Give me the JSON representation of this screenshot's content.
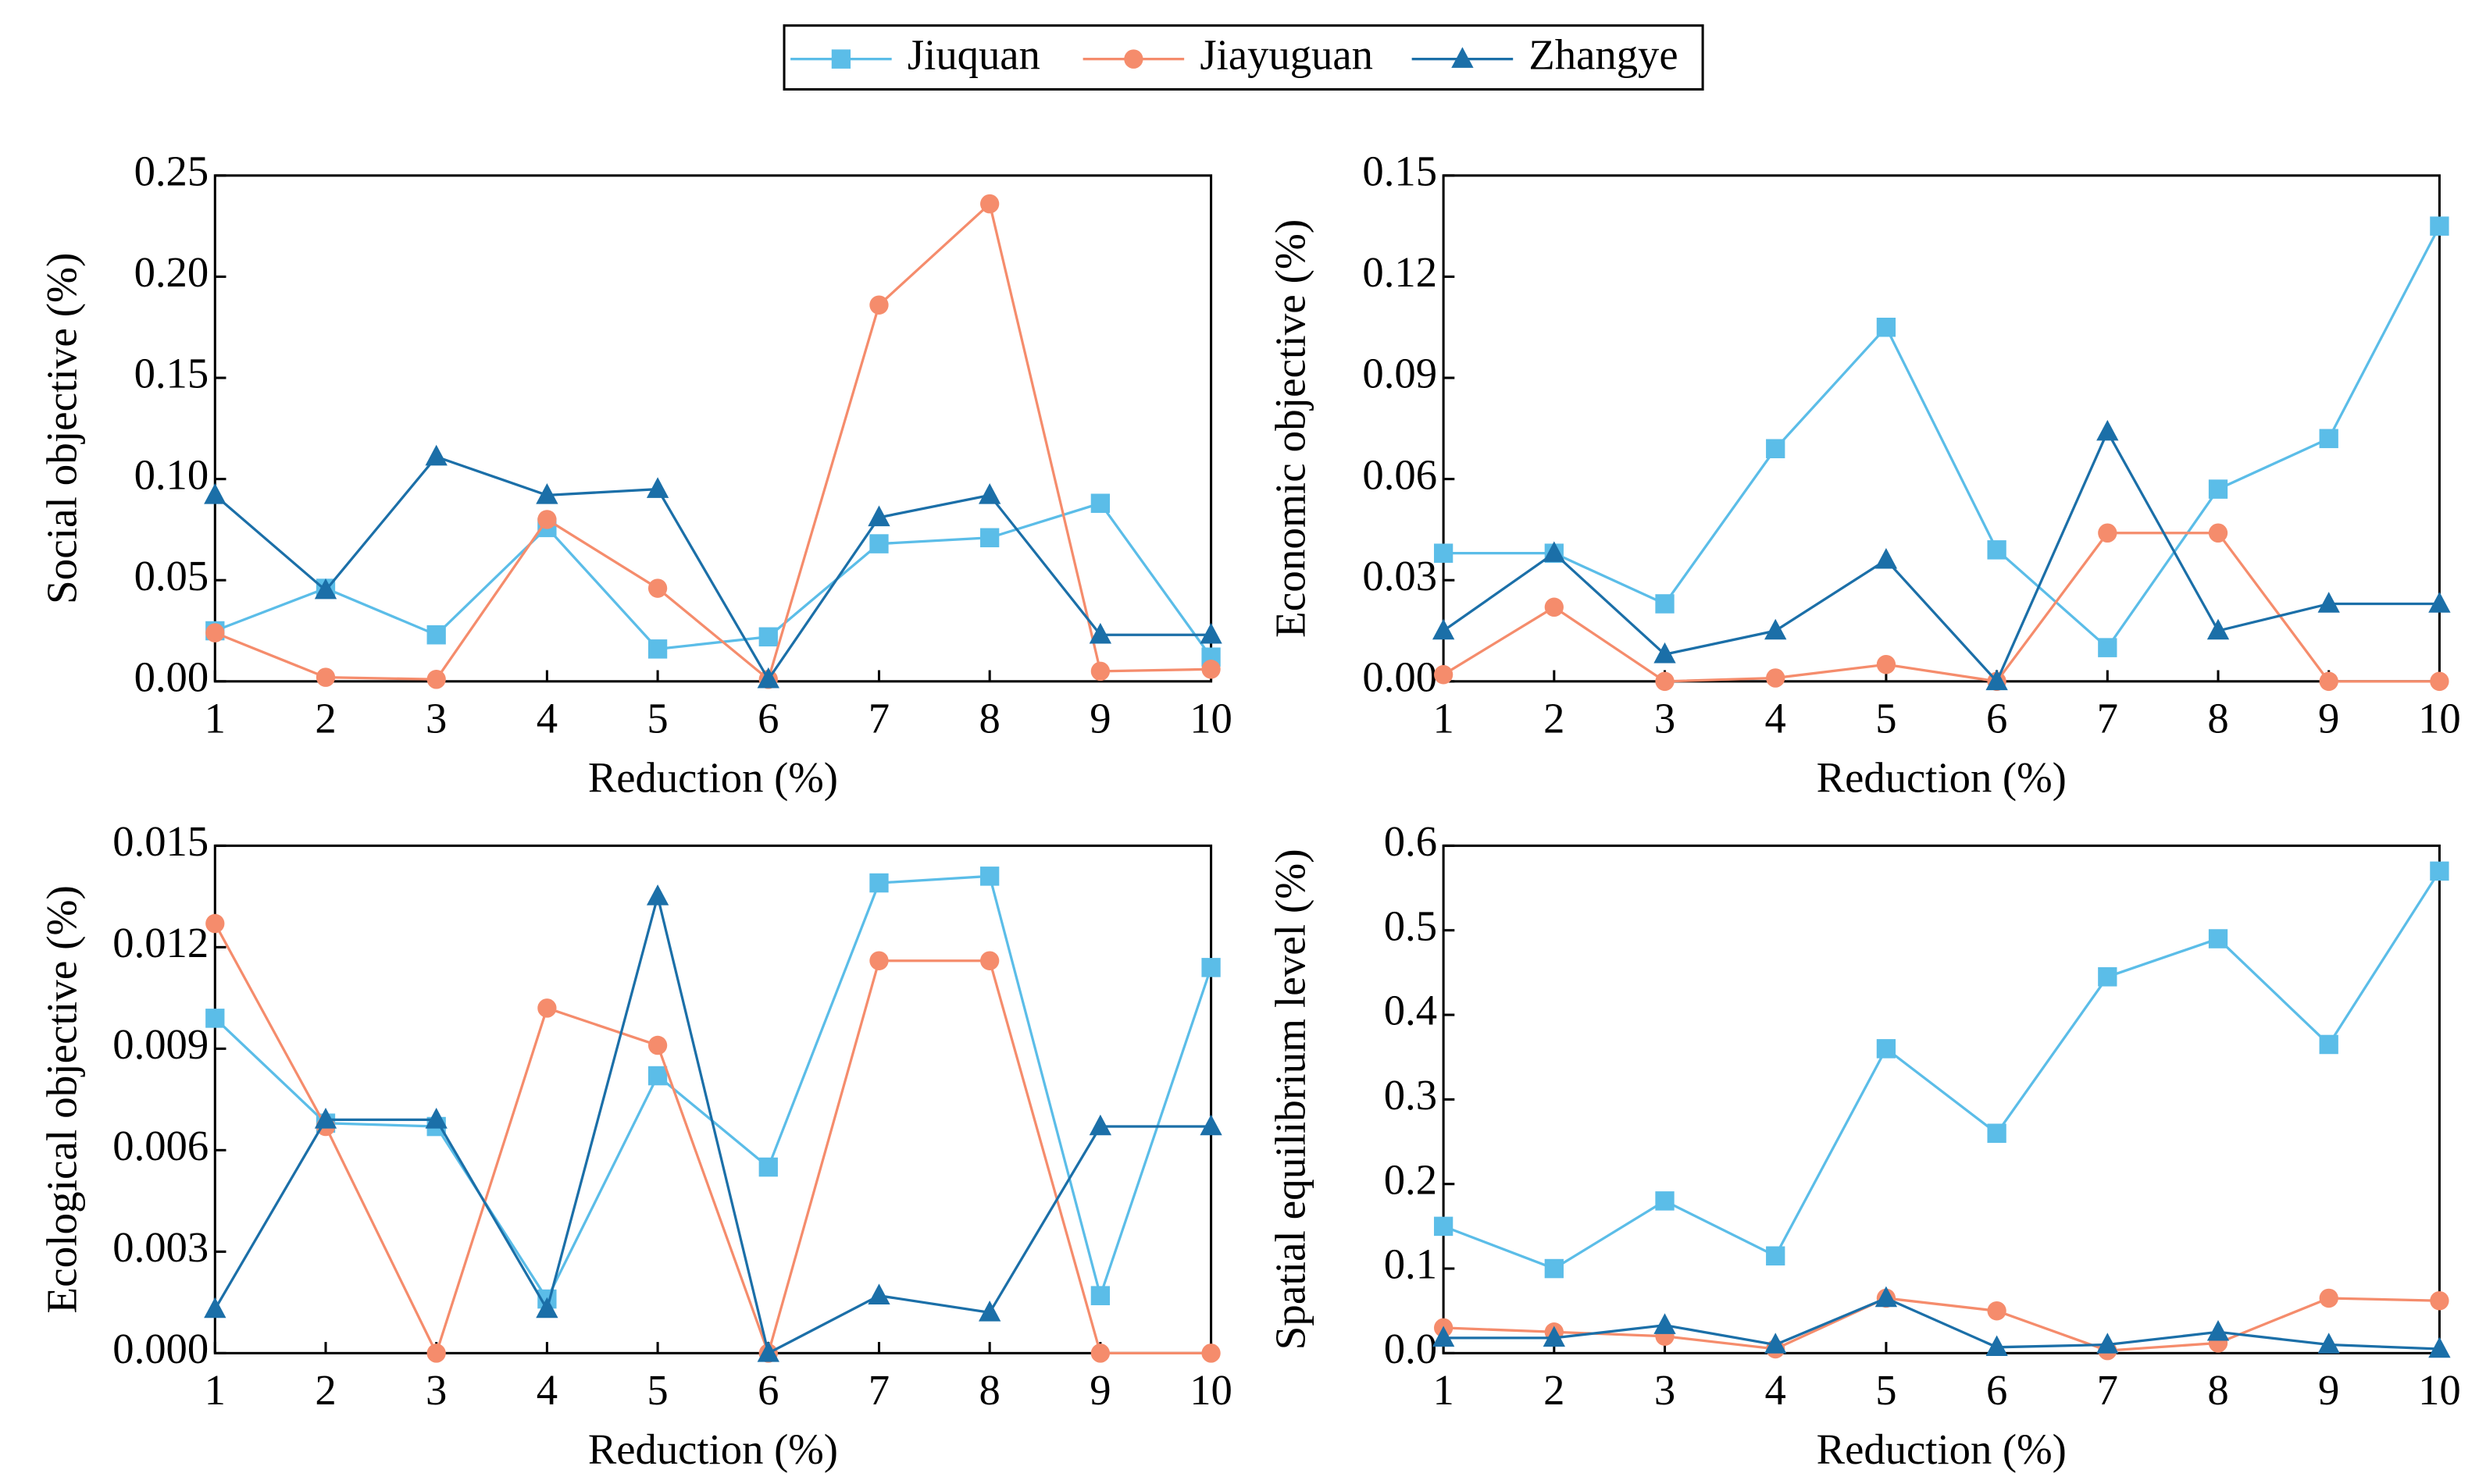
{
  "chart_data": [
    {
      "type": "line",
      "ylabel": "Social objective (%)",
      "xlabel": "Reduction (%)",
      "x": [
        1,
        2,
        3,
        4,
        5,
        6,
        7,
        8,
        9,
        10
      ],
      "xlim": [
        1,
        10
      ],
      "xticks": [
        1,
        2,
        3,
        4,
        5,
        6,
        7,
        8,
        9,
        10
      ],
      "ylim": [
        0,
        0.25
      ],
      "yticks": [
        {
          "value": 0,
          "label": "0.00"
        },
        {
          "value": 0.05,
          "label": "0.05"
        },
        {
          "value": 0.1,
          "label": "0.10"
        },
        {
          "value": 0.15,
          "label": "0.15"
        },
        {
          "value": 0.2,
          "label": "0.20"
        },
        {
          "value": 0.25,
          "label": "0.25"
        }
      ],
      "series": [
        {
          "name": "Jiuquan",
          "color": "#5bbde8",
          "marker": "square",
          "values": [
            0.025,
            0.046,
            0.023,
            0.076,
            0.016,
            0.022,
            0.068,
            0.071,
            0.088,
            0.012
          ]
        },
        {
          "name": "Jiayuguan",
          "color": "#f58c6c",
          "marker": "circle",
          "values": [
            0.024,
            0.002,
            0.001,
            0.08,
            0.046,
            0.001,
            0.186,
            0.236,
            0.005,
            0.006
          ]
        },
        {
          "name": "Zhangye",
          "color": "#1b6fa8",
          "marker": "triangle",
          "values": [
            0.092,
            0.045,
            0.111,
            0.092,
            0.095,
            0.001,
            0.081,
            0.092,
            0.023,
            0.023
          ]
        }
      ]
    },
    {
      "type": "line",
      "ylabel": "Economic objective (%)",
      "xlabel": "Reduction (%)",
      "x": [
        1,
        2,
        3,
        4,
        5,
        6,
        7,
        8,
        9,
        10
      ],
      "xlim": [
        1,
        10
      ],
      "xticks": [
        1,
        2,
        3,
        4,
        5,
        6,
        7,
        8,
        9,
        10
      ],
      "ylim": [
        0,
        0.15
      ],
      "yticks": [
        {
          "value": 0,
          "label": "0.00"
        },
        {
          "value": 0.03,
          "label": "0.03"
        },
        {
          "value": 0.06,
          "label": "0.06"
        },
        {
          "value": 0.09,
          "label": "0.09"
        },
        {
          "value": 0.12,
          "label": "0.12"
        },
        {
          "value": 0.15,
          "label": "0.15"
        }
      ],
      "series": [
        {
          "name": "Jiuquan",
          "color": "#5bbde8",
          "marker": "square",
          "values": [
            0.038,
            0.038,
            0.023,
            0.069,
            0.105,
            0.039,
            0.01,
            0.057,
            0.072,
            0.135
          ]
        },
        {
          "name": "Jiayuguan",
          "color": "#f58c6c",
          "marker": "circle",
          "values": [
            0.002,
            0.022,
            0.0,
            0.001,
            0.005,
            0.0,
            0.044,
            0.044,
            0.0,
            0.0
          ]
        },
        {
          "name": "Zhangye",
          "color": "#1b6fa8",
          "marker": "triangle",
          "values": [
            0.015,
            0.038,
            0.008,
            0.015,
            0.036,
            0.0,
            0.074,
            0.015,
            0.023,
            0.023
          ]
        }
      ]
    },
    {
      "type": "line",
      "ylabel": "Ecological objective (%)",
      "xlabel": "Reduction (%)",
      "x": [
        1,
        2,
        3,
        4,
        5,
        6,
        7,
        8,
        9,
        10
      ],
      "xlim": [
        1,
        10
      ],
      "xticks": [
        1,
        2,
        3,
        4,
        5,
        6,
        7,
        8,
        9,
        10
      ],
      "ylim": [
        0,
        0.015
      ],
      "yticks": [
        {
          "value": 0,
          "label": "0.000"
        },
        {
          "value": 0.003,
          "label": "0.003"
        },
        {
          "value": 0.006,
          "label": "0.006"
        },
        {
          "value": 0.009,
          "label": "0.009"
        },
        {
          "value": 0.012,
          "label": "0.012"
        },
        {
          "value": 0.015,
          "label": "0.015"
        }
      ],
      "series": [
        {
          "name": "Jiuquan",
          "color": "#5bbde8",
          "marker": "square",
          "values": [
            0.0099,
            0.0068,
            0.0067,
            0.0016,
            0.0082,
            0.0055,
            0.0139,
            0.0141,
            0.0017,
            0.0114
          ]
        },
        {
          "name": "Jiayuguan",
          "color": "#f58c6c",
          "marker": "circle",
          "values": [
            0.0127,
            0.0067,
            0.0,
            0.0102,
            0.0091,
            0.0,
            0.0116,
            0.0116,
            0.0,
            0.0
          ]
        },
        {
          "name": "Zhangye",
          "color": "#1b6fa8",
          "marker": "triangle",
          "values": [
            0.0013,
            0.0069,
            0.0069,
            0.0013,
            0.0135,
            0.0,
            0.0017,
            0.0012,
            0.0067,
            0.0067
          ]
        }
      ]
    },
    {
      "type": "line",
      "ylabel": "Spatial equilibrium level (%)",
      "xlabel": "Reduction (%)",
      "x": [
        1,
        2,
        3,
        4,
        5,
        6,
        7,
        8,
        9,
        10
      ],
      "xlim": [
        1,
        10
      ],
      "xticks": [
        1,
        2,
        3,
        4,
        5,
        6,
        7,
        8,
        9,
        10
      ],
      "ylim": [
        0,
        0.6
      ],
      "yticks": [
        {
          "value": 0,
          "label": "0.0"
        },
        {
          "value": 0.1,
          "label": "0.1"
        },
        {
          "value": 0.2,
          "label": "0.2"
        },
        {
          "value": 0.3,
          "label": "0.3"
        },
        {
          "value": 0.4,
          "label": "0.4"
        },
        {
          "value": 0.5,
          "label": "0.5"
        },
        {
          "value": 0.6,
          "label": "0.6"
        }
      ],
      "series": [
        {
          "name": "Jiuquan",
          "color": "#5bbde8",
          "marker": "square",
          "values": [
            0.15,
            0.1,
            0.18,
            0.115,
            0.36,
            0.26,
            0.445,
            0.49,
            0.365,
            0.57
          ]
        },
        {
          "name": "Jiayuguan",
          "color": "#f58c6c",
          "marker": "circle",
          "values": [
            0.03,
            0.025,
            0.02,
            0.005,
            0.065,
            0.05,
            0.003,
            0.012,
            0.065,
            0.062
          ]
        },
        {
          "name": "Zhangye",
          "color": "#1b6fa8",
          "marker": "triangle",
          "values": [
            0.018,
            0.018,
            0.033,
            0.01,
            0.065,
            0.007,
            0.01,
            0.025,
            0.01,
            0.005
          ]
        }
      ]
    }
  ]
}
